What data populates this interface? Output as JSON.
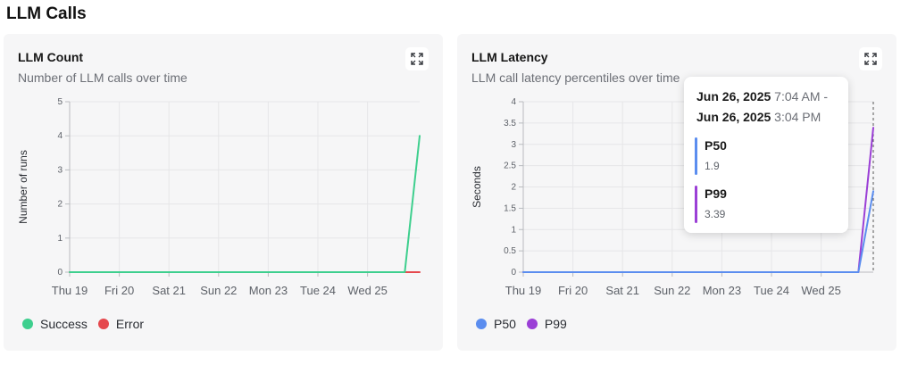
{
  "page": {
    "section_title": "LLM Calls"
  },
  "colors": {
    "success": "#3ecf8e",
    "error": "#e5484d",
    "p50": "#5b8def",
    "p99": "#9b3fd6",
    "grid": "#e6e6e8",
    "axis": "#b9bbbf",
    "tick_text": "#5d6168"
  },
  "count_card": {
    "title": "LLM Count",
    "subtitle": "Number of LLM calls over time",
    "expand_icon": "expand-icon",
    "legend": [
      {
        "label": "Success",
        "color": "#3ecf8e"
      },
      {
        "label": "Error",
        "color": "#e5484d"
      }
    ]
  },
  "latency_card": {
    "title": "LLM Latency",
    "subtitle": "LLM call latency percentiles over time",
    "expand_icon": "expand-icon",
    "legend": [
      {
        "label": "P50",
        "color": "#5b8def"
      },
      {
        "label": "P99",
        "color": "#9b3fd6"
      }
    ],
    "tooltip": {
      "line1_date": "Jun 26, 2025",
      "line1_time": "7:04 AM -",
      "line2_date": "Jun 26, 2025",
      "line2_time": "3:04 PM",
      "items": [
        {
          "name": "P50",
          "value": "1.9",
          "color": "#5b8def"
        },
        {
          "name": "P99",
          "value": "3.39",
          "color": "#9b3fd6"
        }
      ]
    }
  },
  "chart_data": [
    {
      "type": "line",
      "title": "LLM Count",
      "xlabel": "",
      "ylabel": "Number of runs",
      "ylim": [
        0,
        5
      ],
      "yticks": [
        0,
        1,
        2,
        3,
        4,
        5
      ],
      "xtick_labels": [
        "Thu 19",
        "Fri 20",
        "Sat 21",
        "Sun 22",
        "Mon 23",
        "Tue 24",
        "Wed 25"
      ],
      "x": [
        "Jun 19",
        "Jun 20",
        "Jun 21",
        "Jun 22",
        "Jun 23",
        "Jun 24",
        "Jun 25",
        "Jun 26 07:04",
        "Jun 26 15:04"
      ],
      "x_pos": [
        0,
        1,
        2,
        3,
        4,
        5,
        6,
        6.75,
        7.05
      ],
      "grid": true,
      "legend_position": "bottom-left",
      "series": [
        {
          "name": "Success",
          "color": "#3ecf8e",
          "values": [
            0,
            0,
            0,
            0,
            0,
            0,
            0,
            0,
            4
          ]
        },
        {
          "name": "Error",
          "color": "#e5484d",
          "values": [
            0,
            0,
            0,
            0,
            0,
            0,
            0,
            0,
            0
          ]
        }
      ]
    },
    {
      "type": "line",
      "title": "LLM Latency",
      "xlabel": "",
      "ylabel": "Seconds",
      "ylim": [
        0,
        4
      ],
      "yticks": [
        0,
        0.5,
        1,
        1.5,
        2,
        2.5,
        3,
        3.5,
        4
      ],
      "xtick_labels": [
        "Thu 19",
        "Fri 20",
        "Sat 21",
        "Sun 22",
        "Mon 23",
        "Tue 24",
        "Wed 25"
      ],
      "x": [
        "Jun 19",
        "Jun 20",
        "Jun 21",
        "Jun 22",
        "Jun 23",
        "Jun 24",
        "Jun 25",
        "Jun 26 07:04",
        "Jun 26 15:04"
      ],
      "x_pos": [
        0,
        1,
        2,
        3,
        4,
        5,
        6,
        6.75,
        7.05
      ],
      "grid": true,
      "legend_position": "bottom-left",
      "series": [
        {
          "name": "P50",
          "color": "#5b8def",
          "values": [
            0,
            0,
            0,
            0,
            0,
            0,
            0,
            0,
            1.9
          ]
        },
        {
          "name": "P99",
          "color": "#9b3fd6",
          "values": [
            0,
            0,
            0,
            0,
            0,
            0,
            0,
            0,
            3.39
          ]
        }
      ]
    }
  ]
}
